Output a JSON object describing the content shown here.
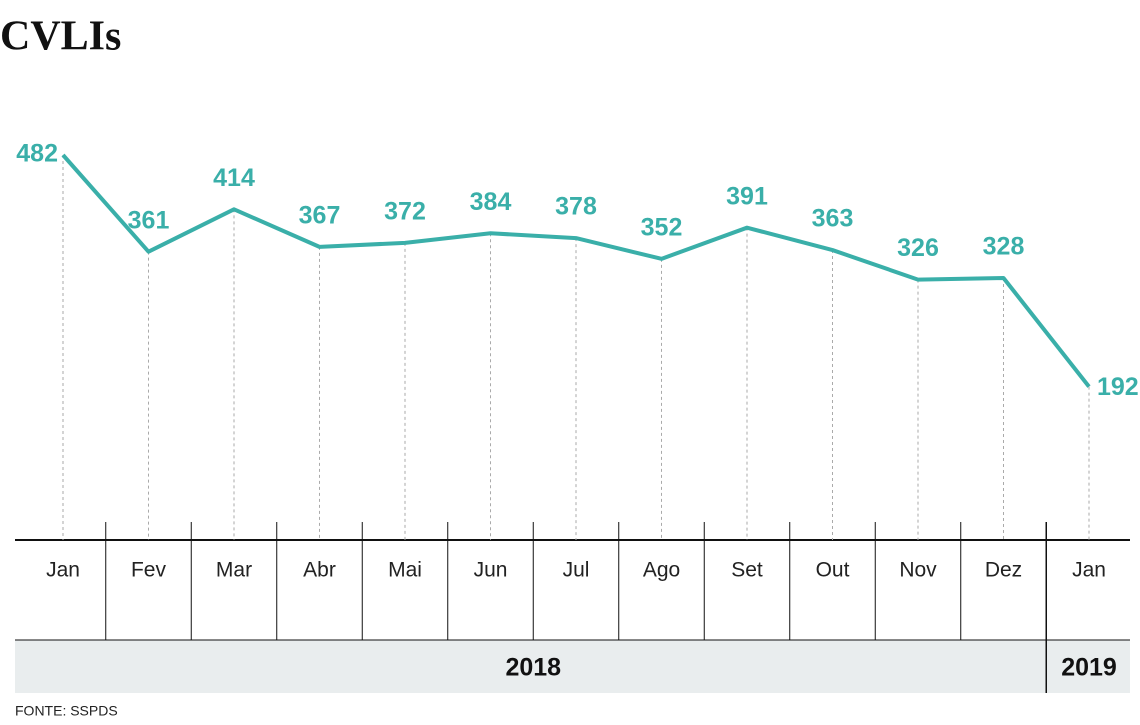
{
  "chart_data": {
    "type": "line",
    "title": "CVLIs",
    "categories": [
      "Jan",
      "Fev",
      "Mar",
      "Abr",
      "Mai",
      "Jun",
      "Jul",
      "Ago",
      "Set",
      "Out",
      "Nov",
      "Dez",
      "Jan"
    ],
    "series": [
      {
        "name": "CVLIs",
        "color": "#3aafa9",
        "values": [
          482,
          361,
          414,
          367,
          372,
          384,
          378,
          352,
          391,
          363,
          326,
          328,
          192
        ]
      }
    ],
    "years": [
      "2018",
      "2019"
    ],
    "source": "FONTE: SSPDS"
  }
}
